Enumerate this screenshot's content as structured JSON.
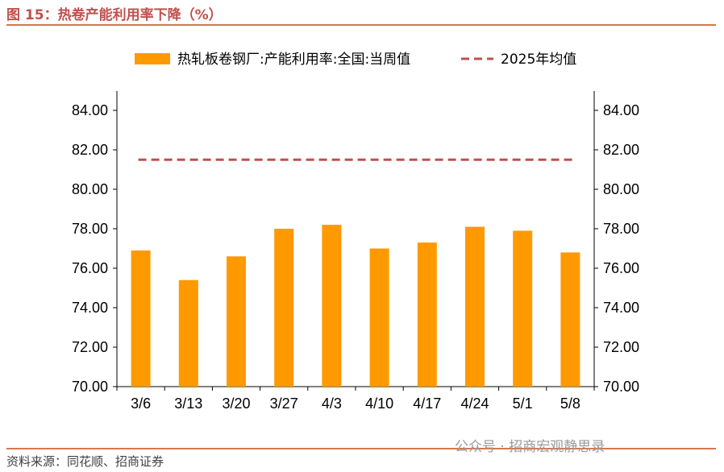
{
  "header": {
    "title": "图 15：热卷产能利用率下降（%）"
  },
  "footer": {
    "source": "资料来源：同花顺、招商证券",
    "watermark": "公众号 · 招商宏观静思录"
  },
  "colors": {
    "bar": "#ff9900",
    "avg_line": "#c0504d",
    "rule": "#d8774a",
    "title": "#c0504d"
  },
  "chart_data": {
    "type": "bar",
    "categories": [
      "3/6",
      "3/13",
      "3/20",
      "3/27",
      "4/3",
      "4/10",
      "4/17",
      "4/24",
      "5/1",
      "5/8"
    ],
    "series": [
      {
        "name": "热轧板卷钢厂:产能利用率:全国:当周值",
        "type": "bar",
        "values": [
          76.9,
          75.4,
          76.6,
          78.0,
          78.2,
          77.0,
          77.3,
          78.1,
          77.9,
          76.8
        ]
      },
      {
        "name": "2025年均值",
        "type": "line",
        "style": "dashed",
        "value": 81.5
      }
    ],
    "ylim": [
      70,
      84
    ],
    "yticks": [
      "70.00",
      "72.00",
      "74.00",
      "76.00",
      "78.00",
      "80.00",
      "82.00",
      "84.00"
    ],
    "y2ticks": [
      "70.00",
      "72.00",
      "74.00",
      "76.00",
      "78.00",
      "80.00",
      "82.00",
      "84.00"
    ],
    "grid": false,
    "legend_position": "top"
  }
}
